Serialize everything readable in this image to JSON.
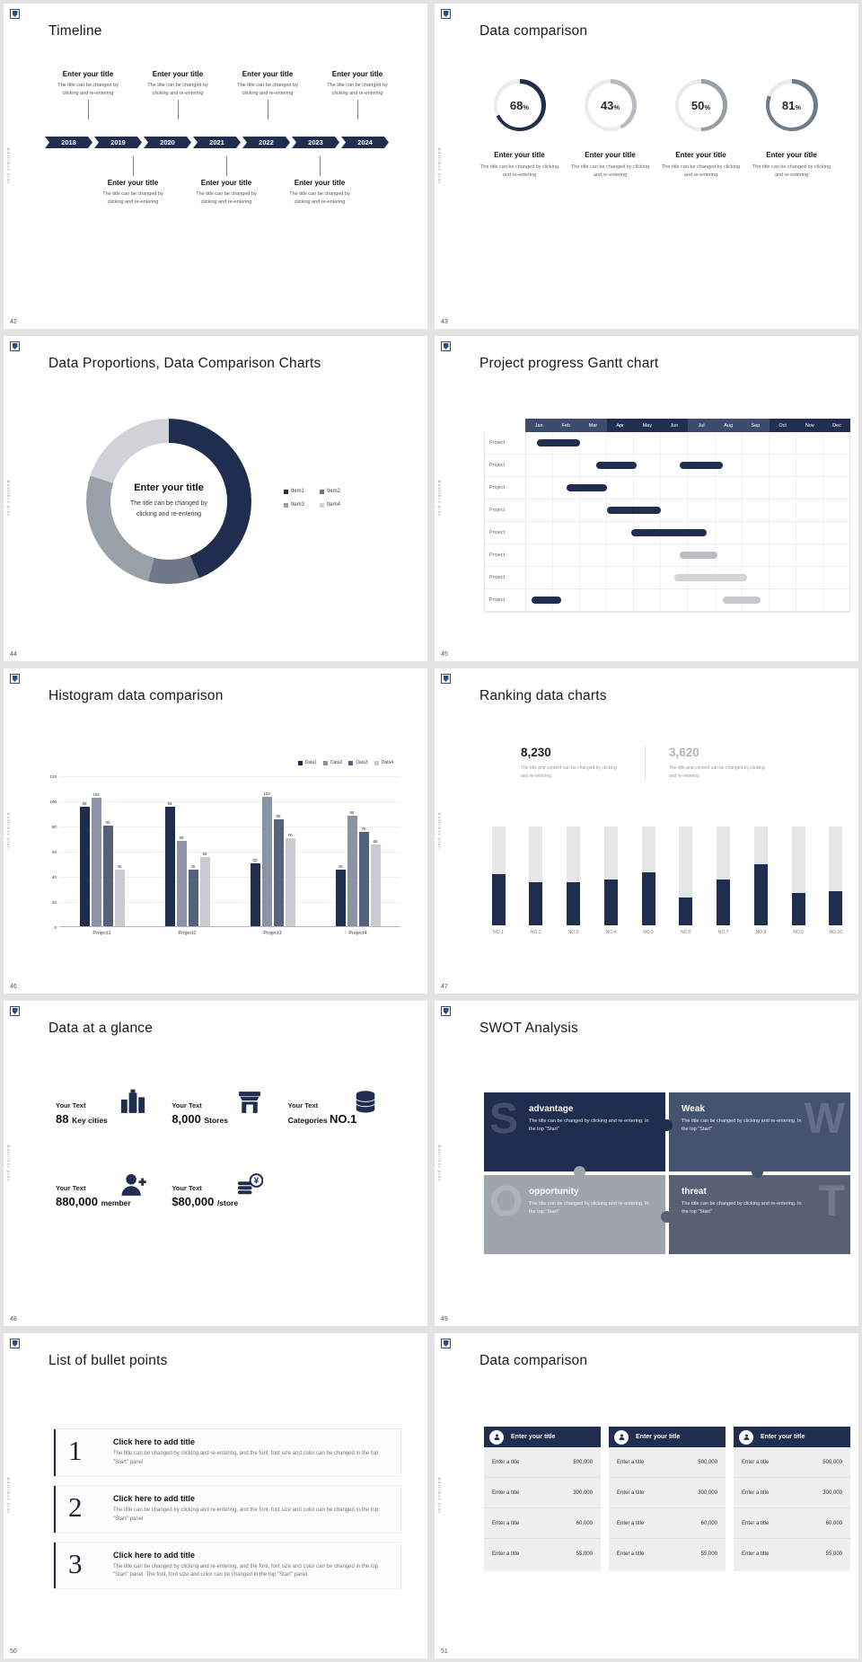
{
  "meta": {
    "sidebar_text": "Business plan",
    "navy": "#1f2e4e"
  },
  "slide42": {
    "number": "42",
    "title": "Timeline",
    "years": [
      "2018",
      "2019",
      "2020",
      "2021",
      "2022",
      "2023",
      "2024"
    ],
    "top_items": [
      {
        "title": "Enter your title",
        "desc": "The title can be changed by clicking and re-entering"
      },
      {
        "title": "Enter your title",
        "desc": "The title can be changed by clicking and re-entering"
      },
      {
        "title": "Enter your title",
        "desc": "The title can be changed by clicking and re-entering"
      },
      {
        "title": "Enter your title",
        "desc": "The title can be changed by clicking and re-entering"
      }
    ],
    "bottom_items": [
      {
        "title": "Enter your title",
        "desc": "The title can be changed by clicking and re-entering"
      },
      {
        "title": "Enter your title",
        "desc": "The title can be changed by clicking and re-entering"
      },
      {
        "title": "Enter your title",
        "desc": "The title can be changed by clicking and re-entering"
      }
    ]
  },
  "slide43": {
    "number": "43",
    "title": "Data comparison",
    "chart_data": {
      "type": "donut-progress",
      "items": [
        {
          "percent": 68,
          "ring_color": "#1f2e4e",
          "title": "Enter your title",
          "desc": "The title can be changed by clicking and re-entering"
        },
        {
          "percent": 43,
          "ring_color": "#b7bac0",
          "title": "Enter your title",
          "desc": "The title can be changed by clicking and re-entering"
        },
        {
          "percent": 50,
          "ring_color": "#989ea7",
          "title": "Enter your title",
          "desc": "The title can be changed by clicking and re-entering"
        },
        {
          "percent": 81,
          "ring_color": "#6f7a8c",
          "title": "Enter your title",
          "desc": "The title can be changed by clicking and re-entering"
        }
      ]
    }
  },
  "slide44": {
    "number": "44",
    "title": "Data Proportions, Data Comparison Charts",
    "center_title": "Enter your title",
    "center_desc": "The title can be changed by clicking and re-entering",
    "chart_data": {
      "type": "pie",
      "legend_position": "right",
      "segments": [
        {
          "label": "Item1",
          "value": 44,
          "color": "#1f2e4e"
        },
        {
          "label": "Item2",
          "value": 10,
          "color": "#6e7889"
        },
        {
          "label": "Item3",
          "value": 26,
          "color": "#9aa0a8"
        },
        {
          "label": "Item4",
          "value": 20,
          "color": "#cfd2d6"
        }
      ]
    }
  },
  "slide45": {
    "number": "45",
    "title": "Project progress Gantt chart",
    "chart_data": {
      "type": "gantt",
      "months": [
        "Jan",
        "Feb",
        "Mar",
        "Apr",
        "May",
        "Jun",
        "Jul",
        "Aug",
        "Sep",
        "Oct",
        "Nov",
        "Dec"
      ],
      "row_label": "Project",
      "rows": [
        {
          "bars": [
            {
              "start": 0.4,
              "end": 2.0,
              "color": "#1f2e4e"
            }
          ]
        },
        {
          "bars": [
            {
              "start": 2.6,
              "end": 4.1,
              "color": "#1f2e4e"
            },
            {
              "start": 5.7,
              "end": 7.3,
              "color": "#1f2e4e"
            }
          ]
        },
        {
          "bars": [
            {
              "start": 1.5,
              "end": 3.0,
              "color": "#1f2e4e"
            }
          ]
        },
        {
          "bars": [
            {
              "start": 3.0,
              "end": 5.0,
              "color": "#1f2e4e"
            }
          ]
        },
        {
          "bars": [
            {
              "start": 3.9,
              "end": 6.7,
              "color": "#1f2e4e"
            }
          ]
        },
        {
          "bars": [
            {
              "start": 5.7,
              "end": 7.1,
              "color": "#b9bcc2"
            }
          ]
        },
        {
          "bars": [
            {
              "start": 5.5,
              "end": 8.2,
              "color": "#d2d4d8"
            }
          ]
        },
        {
          "bars": [
            {
              "start": 0.2,
              "end": 1.3,
              "color": "#1f2e4e"
            },
            {
              "start": 7.3,
              "end": 8.7,
              "color": "#c6c8cd"
            }
          ]
        }
      ]
    }
  },
  "slide46": {
    "number": "46",
    "title": "Histogram data comparison",
    "chart_data": {
      "type": "bar",
      "categories": [
        "Project1",
        "Project2",
        "Project3",
        "Project4"
      ],
      "series": [
        {
          "name": "Data1",
          "color": "#1f2e4e",
          "values": [
            95,
            95,
            50,
            45
          ]
        },
        {
          "name": "Data2",
          "color": "#8b93a4",
          "values": [
            102,
            68,
            103,
            88
          ]
        },
        {
          "name": "Data3",
          "color": "#54627c",
          "values": [
            80,
            45,
            85,
            75
          ]
        },
        {
          "name": "Data4",
          "color": "#c9cbd0",
          "values": [
            45,
            55,
            70,
            65
          ]
        }
      ],
      "ylim": [
        0,
        120
      ],
      "yticks": [
        0,
        20,
        40,
        60,
        80,
        100,
        120
      ],
      "legend_position": "top-right"
    }
  },
  "slide47": {
    "number": "47",
    "title": "Ranking data charts",
    "stat_primary": {
      "value": "8,230",
      "desc": "The title and content can be changed by clicking and re-entering"
    },
    "stat_secondary": {
      "value": "3,620",
      "desc": "The title and content can be changed by clicking and re-entering"
    },
    "chart_data": {
      "type": "bar",
      "categories": [
        "NO.1",
        "NO.2",
        "NO.3",
        "NO.4",
        "NO.5",
        "NO.6",
        "NO.7",
        "NO.8",
        "NO.9",
        "NO.10"
      ],
      "values": [
        52,
        44,
        44,
        46,
        54,
        28,
        46,
        62,
        33,
        35
      ],
      "max": 100,
      "bar_color": "#1f2e4e",
      "track_color": "#e6e6e6"
    }
  },
  "slide48": {
    "number": "48",
    "title": "Data at a glance",
    "stats": [
      {
        "label": "Your Text",
        "value": "88",
        "unit": "Key cities",
        "icon": "city-icon",
        "unit_first": false
      },
      {
        "label": "Your Text",
        "value": "8,000",
        "unit": "Stores",
        "icon": "store-icon",
        "unit_first": false
      },
      {
        "label": "Your Text",
        "value": "NO.1",
        "unit": "Categories",
        "icon": "database-icon",
        "unit_first": true
      },
      {
        "label": "Your Text",
        "value": "880,000",
        "unit": "member",
        "icon": "member-icon",
        "unit_first": false
      },
      {
        "label": "Your Text",
        "value": "$80,000",
        "unit": "/store",
        "icon": "money-icon",
        "unit_first": false
      }
    ]
  },
  "slide49": {
    "number": "49",
    "title": "SWOT Analysis",
    "quadrants": [
      {
        "letter": "S",
        "title": "advantage",
        "desc": "The title can be changed by clicking and re-entering. In the top \"Start\"",
        "bg": "#1f2e4e",
        "letter_side": "left"
      },
      {
        "letter": "W",
        "title": "Weak",
        "desc": "The title can be changed by clicking and re-entering. In the top \"Start\"",
        "bg": "#44546f",
        "letter_side": "right"
      },
      {
        "letter": "O",
        "title": "opportunity",
        "desc": "The title can be changed by clicking and re-entering. In the top \"Start\"",
        "bg": "#a0a5ad",
        "letter_side": "left"
      },
      {
        "letter": "T",
        "title": "threat",
        "desc": "The title can be changed by clicking and re-entering. In the top \"Start\"",
        "bg": "#576173",
        "letter_side": "right"
      }
    ]
  },
  "slide50": {
    "number": "50",
    "title": "List of bullet points",
    "items": [
      {
        "num": "1",
        "title": "Click here to add title",
        "desc": "The title can be changed by clicking and re-entering, and the font, font size and color can be changed in the top \"Start\" panel"
      },
      {
        "num": "2",
        "title": "Click here to add title",
        "desc": "The title can be changed by clicking and re-entering, and the font, font size and color can be changed in the top \"Start\" panel"
      },
      {
        "num": "3",
        "title": "Click here to add title",
        "desc": "The title can be changed by clicking and re-entering, and the font, font size and color can be changed in the top \"Start\" panel. The font, font size and color can be changed in the top \"Start\" panel."
      }
    ]
  },
  "slide51": {
    "number": "51",
    "title": "Data comparison",
    "tables": [
      {
        "header": "Enter your title",
        "icon": "person-icon",
        "rows": [
          [
            "Enter a title",
            "500,000"
          ],
          [
            "Enter a title",
            "300,000"
          ],
          [
            "Enter a title",
            "60,000"
          ],
          [
            "Enter a title",
            "55,000"
          ]
        ]
      },
      {
        "header": "Enter your title",
        "icon": "person-icon",
        "rows": [
          [
            "Enter a title",
            "500,000"
          ],
          [
            "Enter a title",
            "300,000"
          ],
          [
            "Enter a title",
            "60,000"
          ],
          [
            "Enter a title",
            "55,000"
          ]
        ]
      },
      {
        "header": "Enter your title",
        "icon": "person-icon",
        "rows": [
          [
            "Enter a title",
            "500,000"
          ],
          [
            "Enter a title",
            "300,000"
          ],
          [
            "Enter a title",
            "60,000"
          ],
          [
            "Enter a title",
            "55,000"
          ]
        ]
      }
    ]
  }
}
